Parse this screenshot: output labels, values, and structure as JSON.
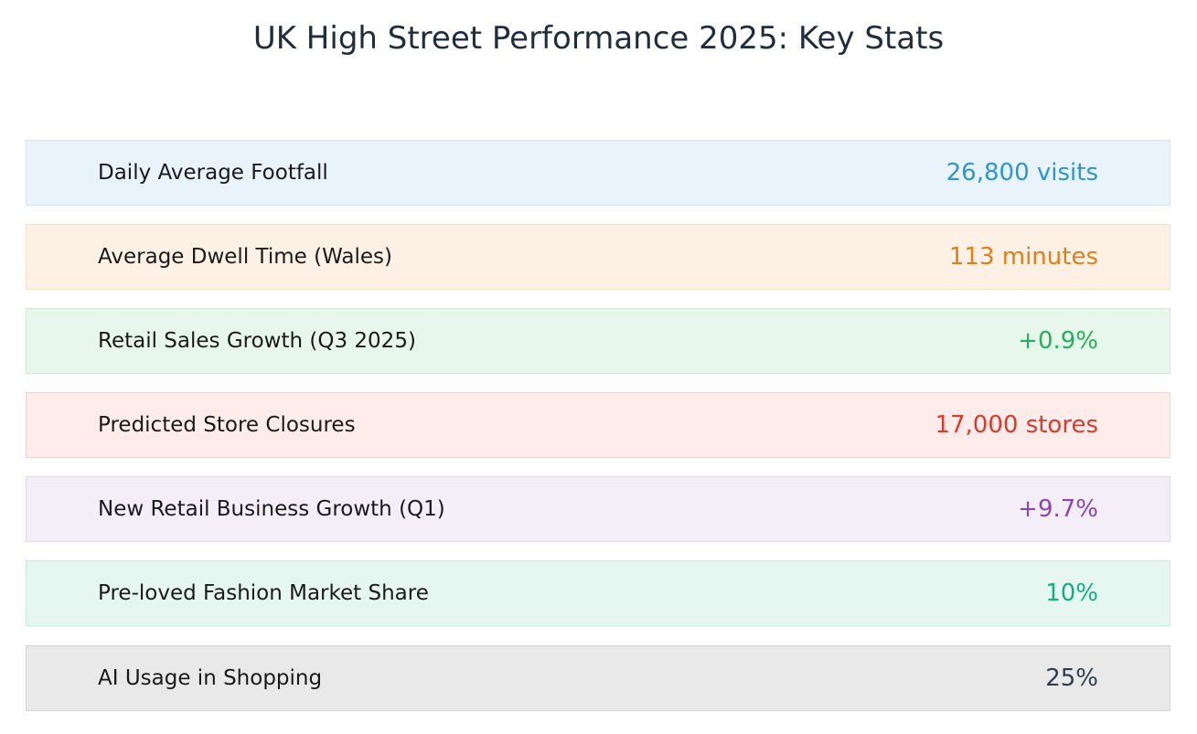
{
  "header": {
    "title": "UK High Street Performance 2025: Key Stats"
  },
  "stats": [
    {
      "label": "Daily Average Footfall",
      "value": "26,800 visits"
    },
    {
      "label": "Average Dwell Time (Wales)",
      "value": "113 minutes"
    },
    {
      "label": "Retail Sales Growth (Q3 2025)",
      "value": "+0.9%"
    },
    {
      "label": "Predicted Store Closures",
      "value": "17,000 stores"
    },
    {
      "label": "New Retail Business Growth (Q1)",
      "value": "+9.7%"
    },
    {
      "label": "Pre-loved Fashion Market Share",
      "value": "10%"
    },
    {
      "label": "AI Usage in Shopping",
      "value": "25%"
    }
  ]
}
